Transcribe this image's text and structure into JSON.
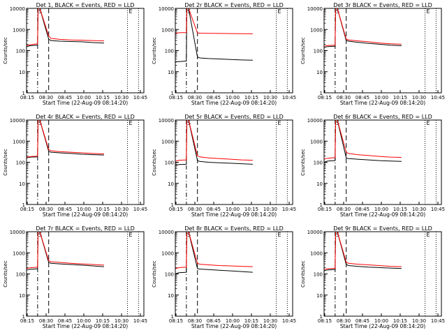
{
  "figure": {
    "ylabel": "Counts/sec",
    "xlabel": "Start Time (22-Aug-09 08:14:20)",
    "x_tick_labels": [
      "08:15",
      "08:30",
      "08:45",
      "10:00",
      "10:15",
      "10:30",
      "10:45"
    ],
    "y_tick_labels": [
      "1",
      "10",
      "100",
      "1000",
      "10000"
    ],
    "event_markers": [
      "S",
      "E"
    ],
    "colors": {
      "events": "#000000",
      "lld": "#ff0000",
      "axes": "#000000"
    }
  },
  "chart_data": [
    {
      "type": "line",
      "title": "Det 1, BLACK = Events, RED = LLD",
      "x_hours": [
        8.25,
        8.3,
        8.333,
        8.5,
        8.51,
        8.55,
        8.75,
        8.8,
        9.0,
        9.25,
        9.5,
        9.75,
        10.0
      ],
      "y_events": [
        150,
        165,
        170,
        180,
        10000,
        10000,
        350,
        300,
        280,
        270,
        260,
        240,
        230
      ],
      "y_lld": [
        170,
        185,
        190,
        210,
        10000,
        10000,
        500,
        380,
        340,
        320,
        310,
        300,
        290
      ],
      "ylim": [
        1,
        10000
      ]
    },
    {
      "type": "line",
      "title": "Det 2r BLACK = Events, RED = LLD",
      "x_hours": [
        8.25,
        8.3,
        8.333,
        8.5,
        8.51,
        8.55,
        8.75,
        8.8,
        9.0,
        9.25,
        9.5,
        9.75,
        10.0
      ],
      "y_events": [
        28,
        30,
        30,
        32,
        10000,
        10000,
        50,
        45,
        42,
        40,
        38,
        36,
        35
      ],
      "y_lld": [
        650,
        680,
        700,
        720,
        10000,
        10000,
        680,
        670,
        660,
        650,
        640,
        630,
        620
      ],
      "ylim": [
        1,
        10000
      ]
    },
    {
      "type": "line",
      "title": "Det 3r BLACK = Events, RED = LLD",
      "x_hours": [
        8.25,
        8.3,
        8.333,
        8.5,
        8.51,
        8.55,
        8.75,
        8.8,
        9.0,
        9.25,
        9.5,
        9.75,
        10.0
      ],
      "y_events": [
        140,
        150,
        155,
        160,
        10000,
        10000,
        300,
        280,
        250,
        220,
        200,
        180,
        170
      ],
      "y_lld": [
        160,
        170,
        175,
        180,
        10000,
        10000,
        350,
        320,
        290,
        260,
        230,
        210,
        200
      ],
      "ylim": [
        1,
        10000
      ]
    },
    {
      "type": "line",
      "title": "Det 4r BLACK = Events, RED = LLD",
      "x_hours": [
        8.25,
        8.3,
        8.333,
        8.5,
        8.51,
        8.55,
        8.75,
        8.8,
        9.0,
        9.25,
        9.5,
        9.75,
        10.0
      ],
      "y_events": [
        160,
        170,
        175,
        180,
        10000,
        10000,
        330,
        300,
        280,
        260,
        240,
        230,
        220
      ],
      "y_lld": [
        170,
        180,
        185,
        195,
        10000,
        10000,
        400,
        350,
        320,
        300,
        280,
        260,
        250
      ],
      "ylim": [
        1,
        10000
      ]
    },
    {
      "type": "line",
      "title": "Det 5r BLACK = Events, RED = LLD",
      "x_hours": [
        8.25,
        8.3,
        8.333,
        8.5,
        8.51,
        8.55,
        8.75,
        8.8,
        9.0,
        9.25,
        9.5,
        9.75,
        10.0
      ],
      "y_events": [
        70,
        75,
        78,
        80,
        10000,
        10000,
        120,
        110,
        100,
        95,
        90,
        85,
        80
      ],
      "y_lld": [
        110,
        120,
        125,
        130,
        10000,
        10000,
        200,
        180,
        160,
        150,
        140,
        130,
        125
      ],
      "ylim": [
        1,
        10000
      ]
    },
    {
      "type": "line",
      "title": "Det 6r BLACK = Events, RED = LLD",
      "x_hours": [
        8.25,
        8.3,
        8.333,
        8.5,
        8.51,
        8.55,
        8.75,
        8.8,
        9.0,
        9.25,
        9.5,
        9.75,
        10.0
      ],
      "y_events": [
        100,
        110,
        115,
        120,
        10000,
        10000,
        160,
        150,
        140,
        130,
        120,
        115,
        110
      ],
      "y_lld": [
        140,
        150,
        155,
        165,
        10000,
        10000,
        300,
        260,
        230,
        210,
        190,
        175,
        170
      ],
      "ylim": [
        1,
        10000
      ]
    },
    {
      "type": "line",
      "title": "Det 7r BLACK = Events, RED = LLD",
      "x_hours": [
        8.25,
        8.3,
        8.333,
        8.5,
        8.51,
        8.55,
        8.75,
        8.8,
        9.0,
        9.25,
        9.5,
        9.75,
        10.0
      ],
      "y_events": [
        150,
        160,
        165,
        175,
        10000,
        10000,
        350,
        320,
        300,
        280,
        260,
        240,
        220
      ],
      "y_lld": [
        180,
        190,
        195,
        210,
        10000,
        10000,
        420,
        380,
        350,
        320,
        300,
        280,
        260
      ],
      "ylim": [
        1,
        10000
      ]
    },
    {
      "type": "line",
      "title": "Det 8r BLACK = Events, RED = LLD",
      "x_hours": [
        8.25,
        8.3,
        8.333,
        8.5,
        8.51,
        8.55,
        8.75,
        8.8,
        9.0,
        9.25,
        9.5,
        9.75,
        10.0
      ],
      "y_events": [
        100,
        110,
        115,
        120,
        10000,
        10000,
        180,
        170,
        160,
        150,
        140,
        130,
        120
      ],
      "y_lld": [
        180,
        190,
        200,
        210,
        10000,
        10000,
        320,
        290,
        270,
        250,
        240,
        230,
        220
      ],
      "ylim": [
        1,
        10000
      ]
    },
    {
      "type": "line",
      "title": "Det 9r BLACK = Events, RED = LLD",
      "x_hours": [
        8.25,
        8.3,
        8.333,
        8.5,
        8.51,
        8.55,
        8.75,
        8.8,
        9.0,
        9.25,
        9.5,
        9.75,
        10.0
      ],
      "y_events": [
        140,
        150,
        155,
        160,
        10000,
        10000,
        280,
        250,
        230,
        210,
        200,
        190,
        180
      ],
      "y_lld": [
        160,
        170,
        175,
        185,
        10000,
        10000,
        360,
        320,
        290,
        270,
        250,
        230,
        220
      ],
      "ylim": [
        1,
        10000
      ]
    }
  ]
}
